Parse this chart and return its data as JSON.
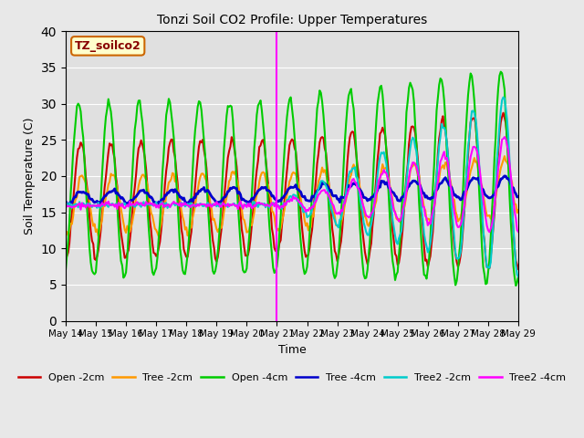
{
  "title": "Tonzi Soil CO2 Profile: Upper Temperatures",
  "xlabel": "Time",
  "ylabel": "Soil Temperature (C)",
  "annotation": "TZ_soilco2",
  "ylim": [
    0,
    40
  ],
  "yticks": [
    0,
    5,
    10,
    15,
    20,
    25,
    30,
    35,
    40
  ],
  "fig_bg": "#e8e8e8",
  "plot_bg": "#e0e0e0",
  "vline_color": "#ff00ff",
  "series_order": [
    "Open -2cm",
    "Tree -2cm",
    "Open -4cm",
    "Tree -4cm",
    "Tree2 -2cm",
    "Tree2 -4cm"
  ],
  "series_colors": [
    "#cc0000",
    "#ff9900",
    "#00cc00",
    "#0000cc",
    "#00cccc",
    "#ff00ff"
  ],
  "series_lw": [
    1.5,
    1.5,
    1.5,
    2.0,
    1.5,
    1.5
  ],
  "xticklabels": [
    "May 14",
    "May 15",
    "May 16",
    "May 17",
    "May 18",
    "May 19",
    "May 20",
    "May 21",
    "May 22",
    "May 23",
    "May 24",
    "May 25",
    "May 26",
    "May 27",
    "May 28",
    "May 29"
  ],
  "xtick_positions": [
    0,
    1,
    2,
    3,
    4,
    5,
    6,
    7,
    8,
    9,
    10,
    11,
    12,
    13,
    14,
    15
  ],
  "vline_x": 7.0
}
